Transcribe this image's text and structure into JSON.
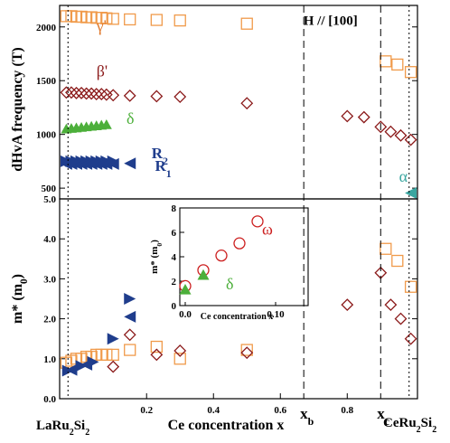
{
  "chart_data": [
    {
      "id": "top",
      "type": "scatter",
      "ylabel": "dHvA frequency (T)",
      "xlim": [
        -0.06,
        1.01
      ],
      "ylim": [
        400,
        2200
      ],
      "yticks": [
        500,
        1000,
        1500,
        2000
      ],
      "annotations": [
        {
          "text": "H // [100]",
          "x": 0.75,
          "y": 2020,
          "color": "#000000"
        },
        {
          "text": "γ'",
          "x": 0.05,
          "y": 1960,
          "color": "#e07a2e"
        },
        {
          "text": "β'",
          "x": 0.05,
          "y": 1540,
          "color": "#8b1a1a"
        },
        {
          "text": "δ",
          "x": 0.14,
          "y": 1100,
          "color": "#4caf3a"
        },
        {
          "text": "α",
          "x": 0.955,
          "y": 560,
          "color": "#3aa6a0"
        }
      ],
      "r_labels": [
        {
          "main": "R",
          "sub": "2",
          "x": 0.215,
          "y": 780
        },
        {
          "main": "R",
          "sub": "1",
          "x": 0.225,
          "y": 660
        }
      ],
      "series": [
        {
          "marker": "square",
          "color": "#f09a4a",
          "x": [
            -0.04,
            -0.025,
            -0.01,
            0.005,
            0.02,
            0.035,
            0.05,
            0.065,
            0.08,
            0.1,
            0.15,
            0.23,
            0.3,
            0.5,
            0.915,
            0.95,
            0.99
          ],
          "y": [
            2100,
            2100,
            2095,
            2095,
            2090,
            2090,
            2085,
            2085,
            2080,
            2075,
            2070,
            2065,
            2060,
            2030,
            1680,
            1650,
            1580
          ]
        },
        {
          "marker": "diamond",
          "color": "#8b1a1a",
          "x": [
            -0.04,
            -0.025,
            -0.01,
            0.005,
            0.02,
            0.035,
            0.05,
            0.065,
            0.08,
            0.1,
            0.15,
            0.23,
            0.3,
            0.5,
            0.8,
            0.85,
            0.9,
            0.93,
            0.96,
            0.99
          ],
          "y": [
            1390,
            1390,
            1385,
            1385,
            1380,
            1380,
            1375,
            1375,
            1370,
            1365,
            1360,
            1355,
            1350,
            1290,
            1170,
            1160,
            1070,
            1025,
            990,
            950
          ]
        },
        {
          "marker": "triangle-up",
          "color": "#4caf3a",
          "x": [
            -0.04,
            -0.025,
            -0.01,
            0.005,
            0.02,
            0.035,
            0.05,
            0.065,
            0.08
          ],
          "y": [
            1050,
            1055,
            1060,
            1065,
            1070,
            1075,
            1080,
            1085,
            1090
          ]
        },
        {
          "marker": "triangle-right",
          "color": "#1f3d8c",
          "x": [
            -0.04,
            -0.025,
            -0.01,
            0.005,
            0.02,
            0.035,
            0.05,
            0.065,
            0.08,
            0.1
          ],
          "y": [
            750,
            750,
            750,
            750,
            750,
            750,
            750,
            750,
            750,
            750
          ]
        },
        {
          "marker": "triangle-left",
          "color": "#1f3d8c",
          "x": [
            -0.04,
            -0.025,
            -0.01,
            0.005,
            0.02,
            0.035,
            0.05,
            0.065,
            0.08,
            0.1,
            0.15
          ],
          "y": [
            725,
            725,
            725,
            725,
            725,
            725,
            725,
            725,
            725,
            725,
            730
          ]
        },
        {
          "marker": "triangle-left",
          "color": "#3aa6a0",
          "x": [
            0.99
          ],
          "y": [
            455
          ]
        }
      ]
    },
    {
      "id": "bottom",
      "type": "scatter",
      "ylabel": "m* (m0)",
      "ylabel_main": "m* (m",
      "ylabel_sub": "0",
      "ylabel_end": ")",
      "xlabel": "Ce concentration x",
      "xlim": [
        -0.06,
        1.01
      ],
      "ylim": [
        0,
        5
      ],
      "yticks": [
        "0.0",
        "1.0",
        "2.0",
        "3.0",
        "4.0",
        "5.0"
      ],
      "xticks": [
        "0.2",
        "0.4",
        "0.6",
        "0.8"
      ],
      "xtick_values": [
        0.2,
        0.4,
        0.6,
        0.8
      ],
      "series": [
        {
          "marker": "square",
          "color": "#f09a4a",
          "x": [
            -0.04,
            -0.025,
            -0.01,
            0.005,
            0.02,
            0.035,
            0.05,
            0.065,
            0.08,
            0.1,
            0.15,
            0.23,
            0.3,
            0.5,
            0.915,
            0.95,
            0.99
          ],
          "y": [
            0.9,
            0.95,
            1.0,
            1.0,
            1.05,
            1.05,
            1.1,
            1.1,
            1.1,
            1.1,
            1.22,
            1.3,
            1.0,
            1.22,
            3.75,
            3.45,
            2.8
          ]
        },
        {
          "marker": "diamond",
          "color": "#8b1a1a",
          "x": [
            0.1,
            0.15,
            0.23,
            0.3,
            0.5,
            0.8,
            0.9,
            0.93,
            0.96,
            0.99
          ],
          "y": [
            0.8,
            1.6,
            1.1,
            1.2,
            1.15,
            2.35,
            3.15,
            2.35,
            2.0,
            1.5
          ]
        },
        {
          "marker": "triangle-right",
          "color": "#1f3d8c",
          "x": [
            -0.035,
            0.005,
            0.04,
            0.1,
            0.15
          ],
          "y": [
            0.7,
            0.82,
            0.92,
            1.5,
            2.5
          ]
        },
        {
          "marker": "triangle-left",
          "color": "#1f3d8c",
          "x": [
            -0.025,
            0.02,
            0.15
          ],
          "y": [
            0.72,
            0.85,
            2.05
          ]
        }
      ]
    },
    {
      "id": "inset",
      "type": "scatter",
      "ylabel": "m* (m0)",
      "ylabel_main": "m* (m",
      "ylabel_sub": "0",
      "ylabel_end": ")",
      "xlabel": "Ce concentration x",
      "xlim": [
        -0.005,
        0.135
      ],
      "ylim": [
        0,
        8
      ],
      "yticks": [
        "0",
        "2",
        "4",
        "6",
        "8"
      ],
      "xticks": [
        "0.0",
        "0.10"
      ],
      "xtick_values": [
        0.0,
        0.1
      ],
      "annotations": [
        {
          "text": "ω",
          "x": 0.085,
          "y": 5.8,
          "color": "#cc1f1f"
        },
        {
          "text": "δ",
          "x": 0.045,
          "y": 1.35,
          "color": "#4caf3a"
        }
      ],
      "series": [
        {
          "marker": "circle",
          "color": "#cc1f1f",
          "x": [
            0.0,
            0.02,
            0.04,
            0.06,
            0.08
          ],
          "y": [
            1.6,
            2.9,
            4.1,
            5.1,
            6.9
          ]
        },
        {
          "marker": "triangle-up",
          "color": "#4caf3a",
          "x": [
            0.0,
            0.02
          ],
          "y": [
            1.3,
            2.5
          ]
        }
      ]
    }
  ],
  "reference_lines": [
    {
      "label_main": "x",
      "label_sub": "b",
      "x": 0.67
    },
    {
      "label_main": "x",
      "label_sub": "c",
      "x": 0.9
    },
    {
      "label_main": "",
      "label_sub": "",
      "x": -0.035
    },
    {
      "label_main": "",
      "label_sub": "",
      "x": 0.985
    }
  ],
  "endpoint_labels": {
    "left": {
      "parts": [
        "LaRu",
        "2",
        "Si",
        "2"
      ]
    },
    "right": {
      "parts": [
        "CeRu",
        "2",
        "Si",
        "2"
      ]
    }
  }
}
